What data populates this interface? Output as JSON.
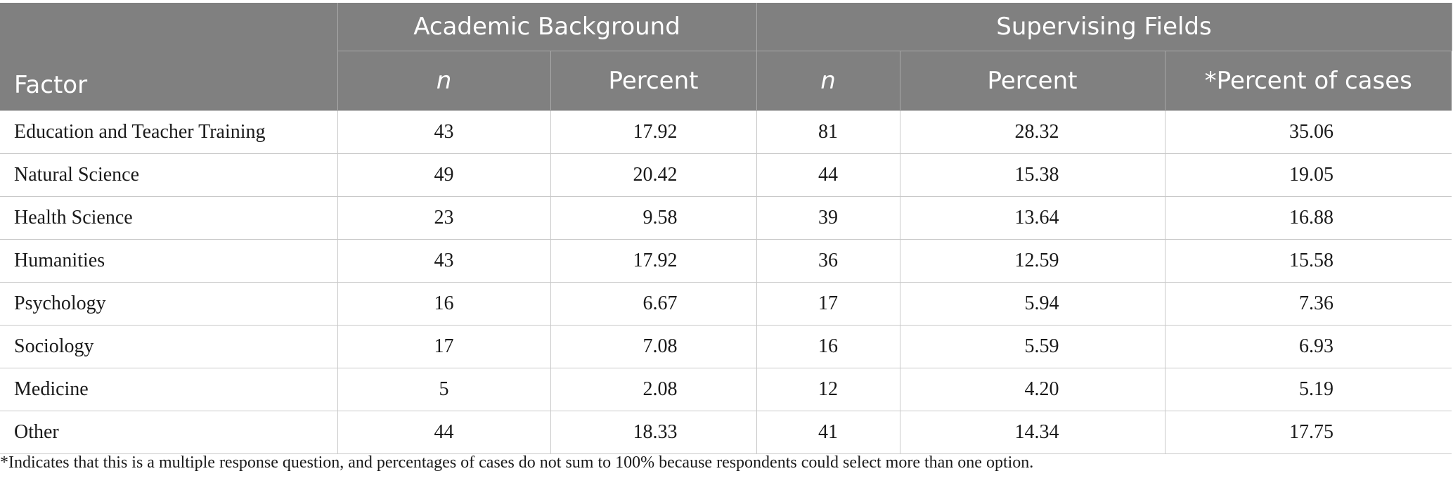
{
  "table": {
    "groups": {
      "academic_background": "Academic Background",
      "supervising_fields": "Supervising Fields"
    },
    "columns": {
      "factor": "Factor",
      "ab_n": "n",
      "ab_percent": "Percent",
      "sf_n": "n",
      "sf_percent": "Percent",
      "sf_percent_cases": "*Percent of cases"
    },
    "rows": [
      {
        "factor": "Education and Teacher Training",
        "ab_n": "43",
        "ab_percent": "17.92",
        "sf_n": "81",
        "sf_percent": "28.32",
        "sf_percent_cases": "35.06"
      },
      {
        "factor": "Natural Science",
        "ab_n": "49",
        "ab_percent": "20.42",
        "sf_n": "44",
        "sf_percent": "15.38",
        "sf_percent_cases": "19.05"
      },
      {
        "factor": "Health Science",
        "ab_n": "23",
        "ab_percent": "9.58",
        "sf_n": "39",
        "sf_percent": "13.64",
        "sf_percent_cases": "16.88"
      },
      {
        "factor": "Humanities",
        "ab_n": "43",
        "ab_percent": "17.92",
        "sf_n": "36",
        "sf_percent": "12.59",
        "sf_percent_cases": "15.58"
      },
      {
        "factor": "Psychology",
        "ab_n": "16",
        "ab_percent": "6.67",
        "sf_n": "17",
        "sf_percent": "5.94",
        "sf_percent_cases": "7.36"
      },
      {
        "factor": "Sociology",
        "ab_n": "17",
        "ab_percent": "7.08",
        "sf_n": "16",
        "sf_percent": "5.59",
        "sf_percent_cases": "6.93"
      },
      {
        "factor": "Medicine",
        "ab_n": "5",
        "ab_percent": "2.08",
        "sf_n": "12",
        "sf_percent": "4.20",
        "sf_percent_cases": "5.19"
      },
      {
        "factor": "Other",
        "ab_n": "44",
        "ab_percent": "18.33",
        "sf_n": "41",
        "sf_percent": "14.34",
        "sf_percent_cases": "17.75"
      }
    ]
  },
  "footnote": "*Indicates that this is a multiple response question, and percentages of cases do not sum to 100% because respondents could select more than one option.",
  "colors": {
    "header_background": "#808080",
    "header_text": "#ffffff",
    "grid_line": "#c9c9c9",
    "body_text": "#1a1a1a"
  }
}
